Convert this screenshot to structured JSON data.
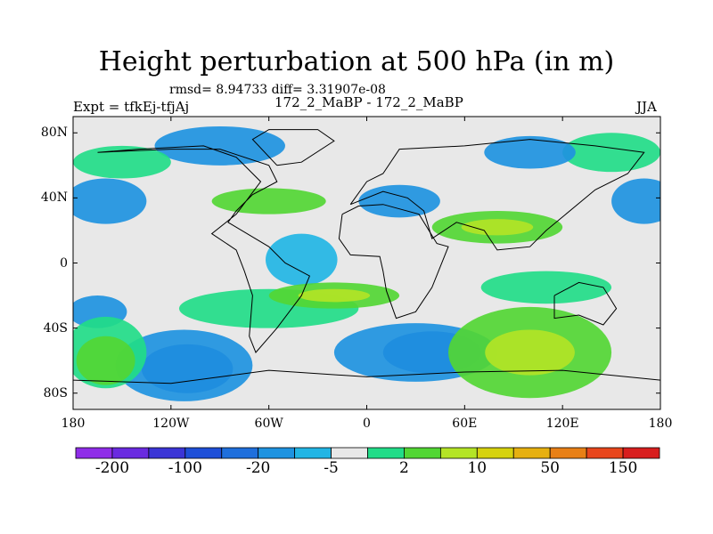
{
  "chart_data": {
    "type": "heatmap",
    "title": "Height perturbation at 500 hPa (in m)",
    "stats": "rmsd= 8.94733 diff= 3.31907e-08",
    "left_label": "Expt = tfkEj-tfjAj",
    "center_label": "172_2_MaBP - 172_2_MaBP",
    "right_label": "JJA",
    "x_ticks": [
      "180",
      "120W",
      "60W",
      "0",
      "60E",
      "120E",
      "180"
    ],
    "x_tick_values": [
      -180,
      -120,
      -60,
      0,
      60,
      120,
      180
    ],
    "y_ticks": [
      "80N",
      "40N",
      "0",
      "40S",
      "80S"
    ],
    "y_tick_values": [
      80,
      40,
      0,
      -40,
      -80
    ],
    "xlim": [
      -180,
      180
    ],
    "ylim": [
      -90,
      90
    ],
    "colorbar": {
      "colors": [
        "#8f2de8",
        "#6a2be0",
        "#3b35d6",
        "#1e4fd8",
        "#1f6fdc",
        "#1e93e0",
        "#22b5e4",
        "#e8e8e8",
        "#22dc88",
        "#52d634",
        "#b4e426",
        "#d6d20e",
        "#e6b010",
        "#e88016",
        "#e8461c",
        "#d81e1e"
      ],
      "labels": [
        "-200",
        "-100",
        "-20",
        "-5",
        "2",
        "10",
        "50",
        "150"
      ]
    },
    "regions": [
      {
        "level": "-20",
        "lon": -110,
        "lat": -65,
        "rlon": 28,
        "rlat": 15
      },
      {
        "level": "-5",
        "lon": -112,
        "lat": -63,
        "rlon": 42,
        "rlat": 22
      },
      {
        "level": "-20",
        "lon": 40,
        "lat": -55,
        "rlon": 30,
        "rlat": 13
      },
      {
        "level": "-5",
        "lon": 30,
        "lat": -55,
        "rlon": 50,
        "rlat": 18
      },
      {
        "level": "-5",
        "lon": -90,
        "lat": 72,
        "rlon": 40,
        "rlat": 12
      },
      {
        "level": "-2",
        "lon": -40,
        "lat": 2,
        "rlon": 22,
        "rlat": 16
      },
      {
        "level": "-5",
        "lon": -160,
        "lat": 38,
        "rlon": 25,
        "rlat": 14
      },
      {
        "level": "-5",
        "lon": 170,
        "lat": 38,
        "rlon": 20,
        "rlat": 14
      },
      {
        "level": "-5",
        "lon": -165,
        "lat": -30,
        "rlon": 18,
        "rlat": 10
      },
      {
        "level": "2",
        "lon": -60,
        "lat": -28,
        "rlon": 55,
        "rlat": 12
      },
      {
        "level": "10",
        "lon": -20,
        "lat": -20,
        "rlon": 40,
        "rlat": 8
      },
      {
        "level": "10",
        "lon": 100,
        "lat": -55,
        "rlon": 50,
        "rlat": 28
      },
      {
        "level": "2",
        "lon": -160,
        "lat": -55,
        "rlon": 25,
        "rlat": 22
      },
      {
        "level": "10",
        "lon": -160,
        "lat": -60,
        "rlon": 18,
        "rlat": 15
      },
      {
        "level": "2",
        "lon": -150,
        "lat": 62,
        "rlon": 30,
        "rlat": 10
      },
      {
        "level": "10",
        "lon": -60,
        "lat": 38,
        "rlon": 35,
        "rlat": 8
      },
      {
        "level": "10",
        "lon": 80,
        "lat": 22,
        "rlon": 40,
        "rlat": 10
      },
      {
        "level": "2",
        "lon": 110,
        "lat": -15,
        "rlon": 40,
        "rlat": 10
      },
      {
        "level": "2",
        "lon": 150,
        "lat": 68,
        "rlon": 30,
        "rlat": 12
      },
      {
        "level": "-5",
        "lon": 100,
        "lat": 68,
        "rlon": 28,
        "rlat": 10
      },
      {
        "level": "-5",
        "lon": 20,
        "lat": 38,
        "rlon": 25,
        "rlat": 10
      }
    ]
  }
}
